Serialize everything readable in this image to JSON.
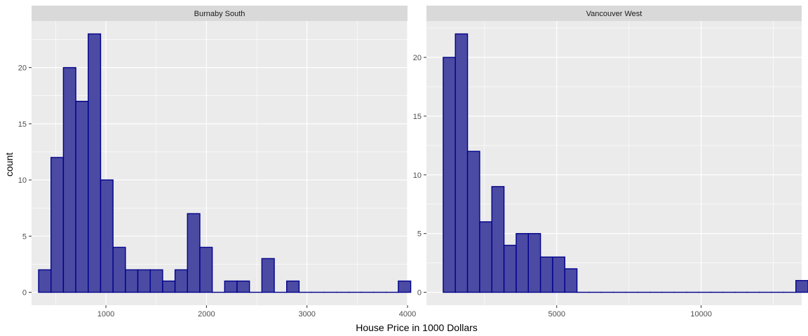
{
  "chart_data": {
    "type": "bar",
    "subtype": "faceted-histogram",
    "xlabel": "House Price in 1000 Dollars",
    "ylabel": "count",
    "grid": true,
    "colors": {
      "fill": "#4B4BA3",
      "stroke": "#00008B",
      "panel": "#EBEBEB",
      "strip": "#D9D9D9",
      "grid": "#FFFFFF"
    },
    "panels": [
      {
        "name": "Burnaby South",
        "xlim": [
          260,
          4000
        ],
        "ylim": [
          -1.15,
          24.15
        ],
        "bin_start": 330,
        "bin_width": 123.4,
        "counts": [
          2,
          12,
          20,
          17,
          23,
          10,
          4,
          2,
          2,
          2,
          1,
          2,
          7,
          4,
          0,
          1,
          1,
          0,
          3,
          0,
          1,
          0,
          0,
          0,
          0,
          0,
          0,
          0,
          0,
          1
        ],
        "x_ticks": [
          1000,
          2000,
          3000,
          4000
        ],
        "x_tick_labels": [
          "1000",
          "2000",
          "3000",
          "4000"
        ],
        "y_ticks": [
          0,
          5,
          10,
          15,
          20
        ],
        "y_tick_labels": [
          "0",
          "5",
          "10",
          "15",
          "20"
        ]
      },
      {
        "name": "Vancouver West",
        "xlim": [
          490,
          13480
        ],
        "ylim": [
          -1.1,
          23.1
        ],
        "bin_start": 1070,
        "bin_width": 421,
        "counts": [
          20,
          22,
          12,
          6,
          9,
          4,
          5,
          5,
          3,
          3,
          2,
          0,
          0,
          0,
          0,
          0,
          0,
          0,
          0,
          0,
          0,
          0,
          0,
          0,
          0,
          0,
          0,
          0,
          0,
          1
        ],
        "x_ticks": [
          5000,
          10000
        ],
        "x_tick_labels": [
          "5000",
          "10000"
        ],
        "y_ticks": [
          0,
          5,
          10,
          15,
          20
        ],
        "y_tick_labels": [
          "0",
          "5",
          "10",
          "15",
          "20"
        ]
      }
    ]
  }
}
